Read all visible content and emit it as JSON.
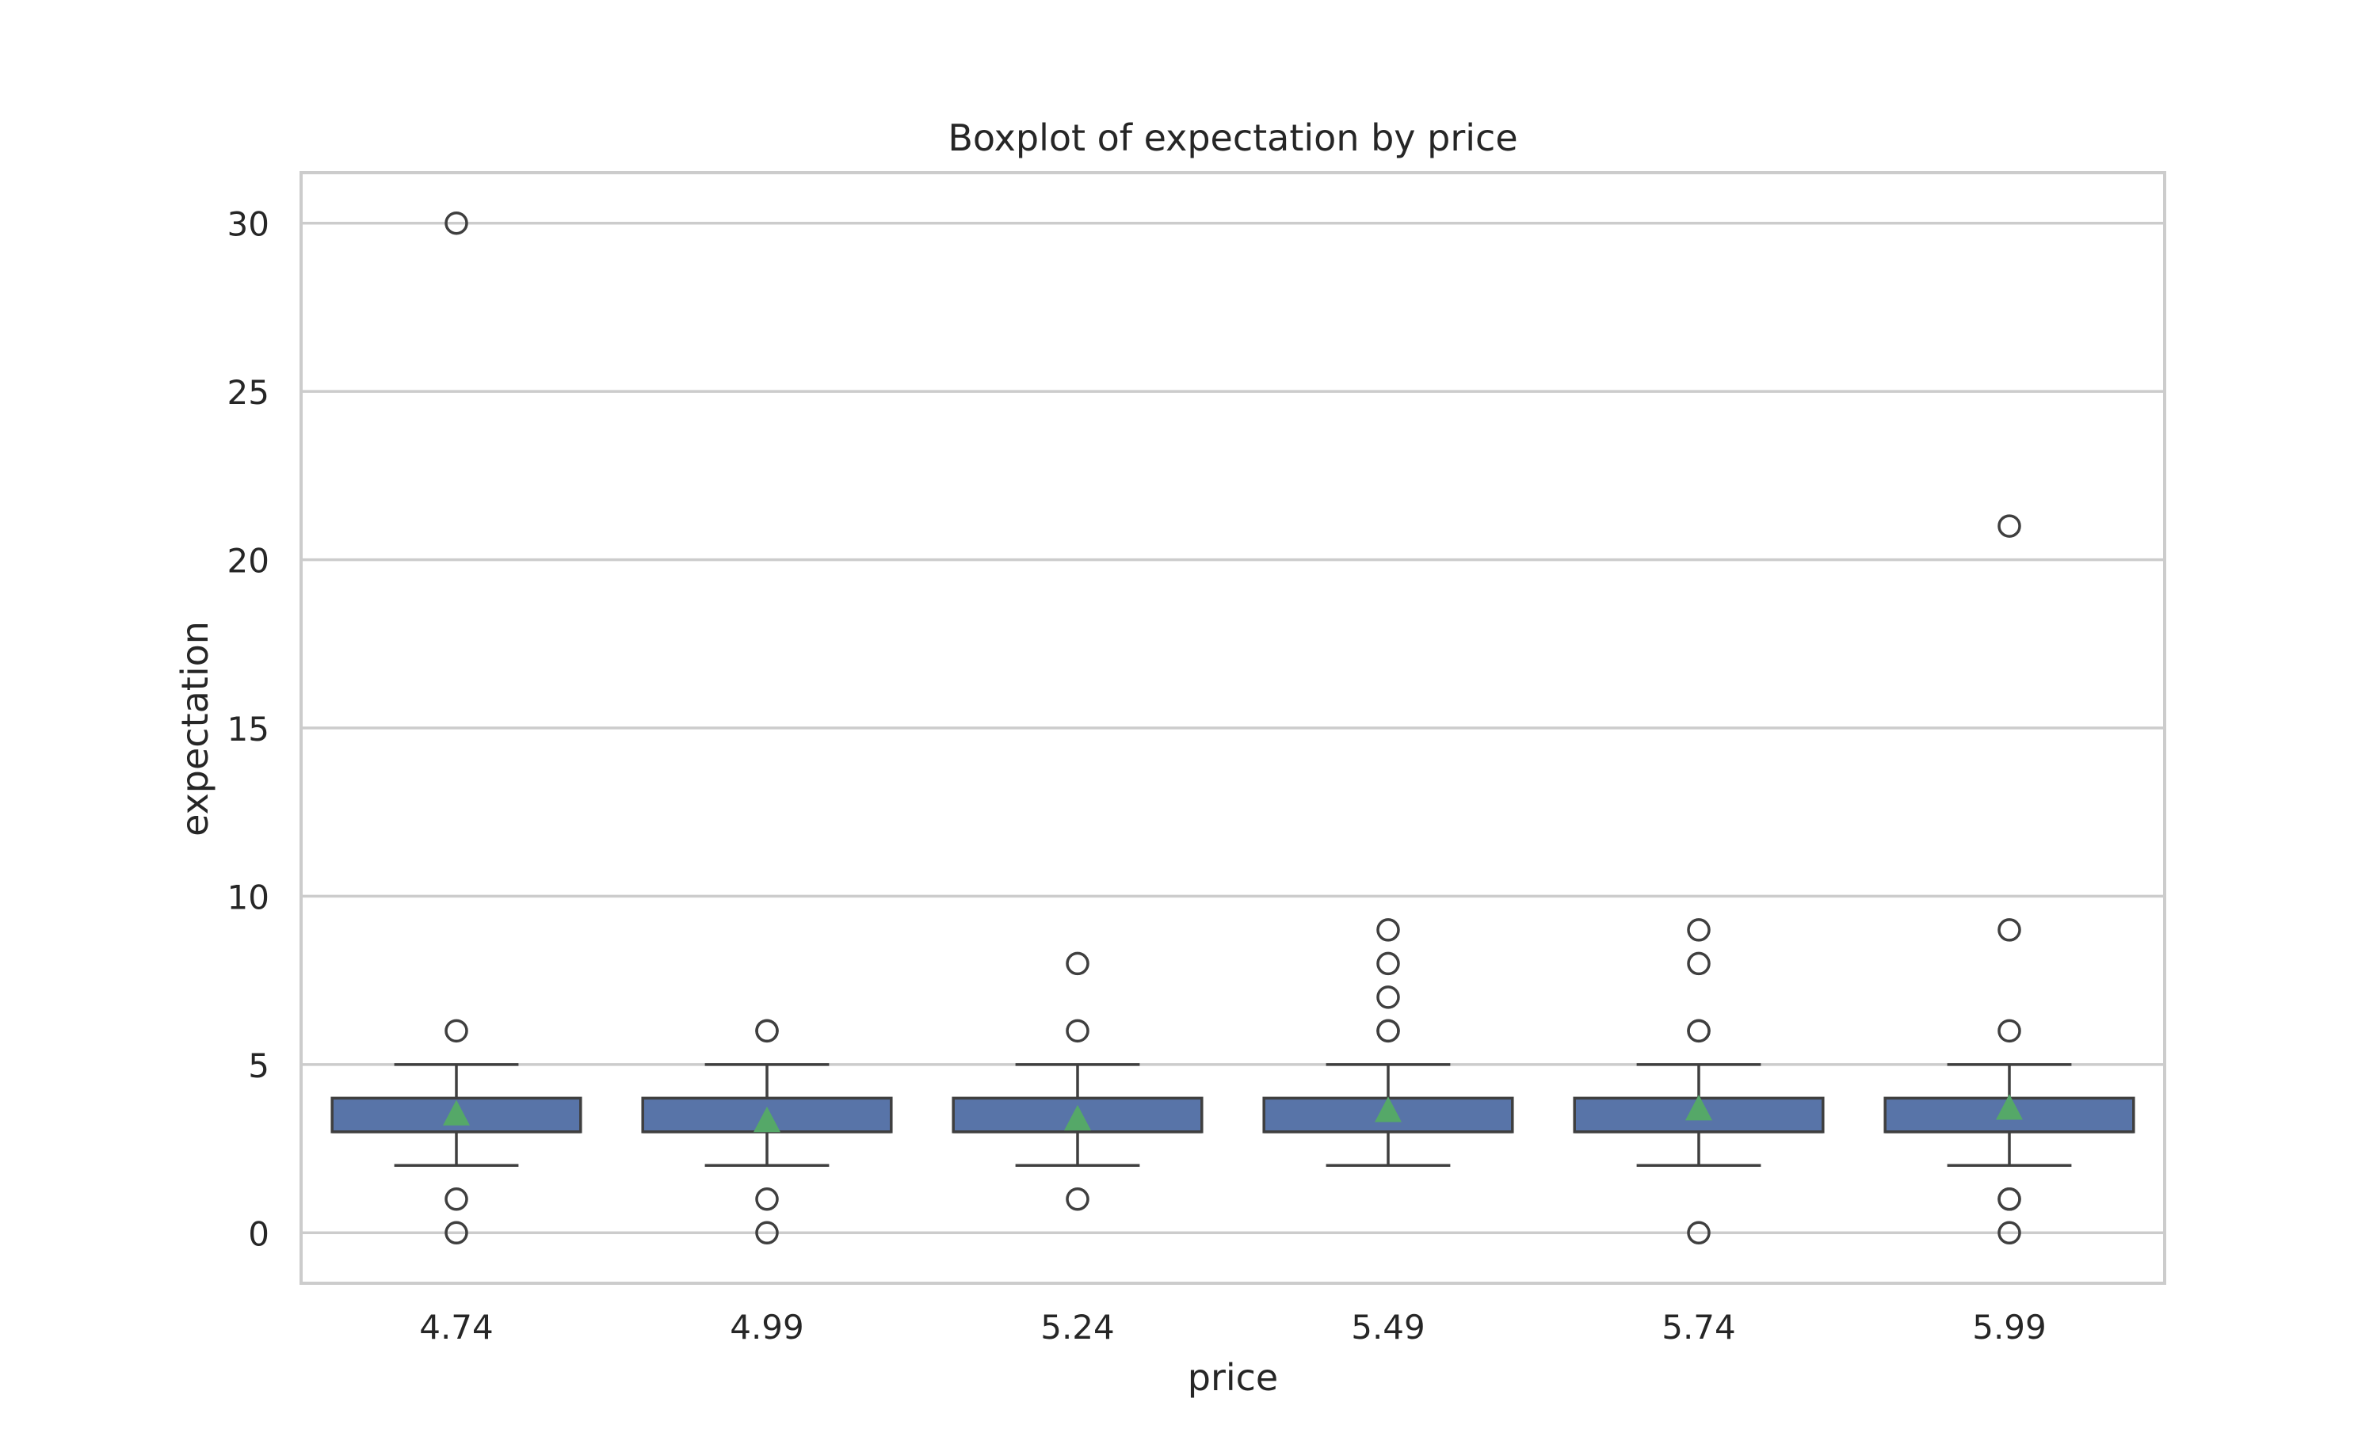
{
  "chart_data": {
    "type": "box",
    "title": "Boxplot of expectation by price",
    "xlabel": "price",
    "ylabel": "expectation",
    "ylim": [
      -1.5,
      31.5
    ],
    "yticks": [
      0,
      5,
      10,
      15,
      20,
      25,
      30
    ],
    "grid": "horizontal",
    "categories": [
      "4.74",
      "4.99",
      "5.24",
      "5.49",
      "5.74",
      "5.99"
    ],
    "boxes": [
      {
        "category": "4.74",
        "whisker_low": 2,
        "q1": 3,
        "median": 3,
        "q3": 4,
        "whisker_high": 5,
        "mean": 3.55,
        "outliers": [
          30,
          6,
          1,
          0
        ]
      },
      {
        "category": "4.99",
        "whisker_low": 2,
        "q1": 3,
        "median": 3,
        "q3": 4,
        "whisker_high": 5,
        "mean": 3.35,
        "outliers": [
          6,
          6,
          1,
          0
        ]
      },
      {
        "category": "5.24",
        "whisker_low": 2,
        "q1": 3,
        "median": 3,
        "q3": 4,
        "whisker_high": 5,
        "mean": 3.4,
        "outliers": [
          8,
          6,
          1
        ]
      },
      {
        "category": "5.49",
        "whisker_low": 2,
        "q1": 3,
        "median": 3,
        "q3": 4,
        "whisker_high": 5,
        "mean": 3.65,
        "outliers": [
          9,
          8,
          7,
          6,
          6
        ]
      },
      {
        "category": "5.74",
        "whisker_low": 2,
        "q1": 3,
        "median": 3,
        "q3": 4,
        "whisker_high": 5,
        "mean": 3.7,
        "outliers": [
          9,
          8,
          6,
          6,
          0
        ]
      },
      {
        "category": "5.99",
        "whisker_low": 2,
        "q1": 3,
        "median": 3,
        "q3": 4,
        "whisker_high": 5,
        "mean": 3.72,
        "outliers": [
          21,
          9,
          6,
          1,
          1,
          0
        ]
      }
    ],
    "colors": {
      "box_fill": "#5874a8",
      "box_edge": "#3f3f3f",
      "mean_marker": "#55a868",
      "grid": "#cccccc",
      "frame": "#cccccc"
    }
  }
}
